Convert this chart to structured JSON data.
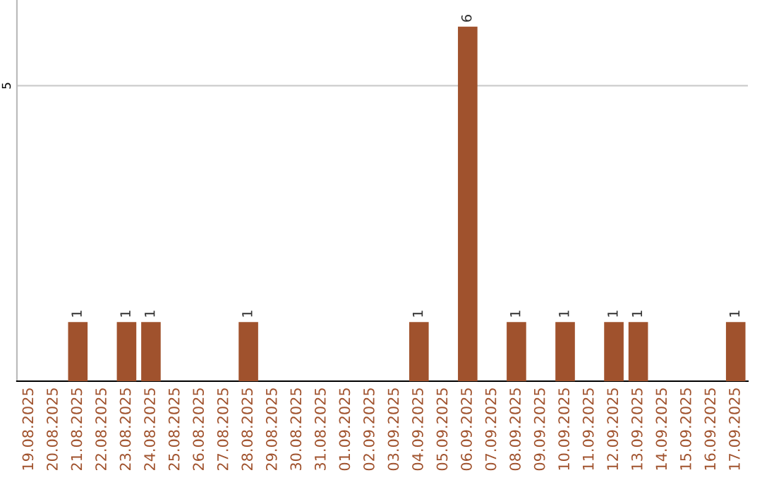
{
  "chart_data": {
    "type": "bar",
    "categories": [
      "19.08.2025",
      "20.08.2025",
      "21.08.2025",
      "22.08.2025",
      "23.08.2025",
      "24.08.2025",
      "25.08.2025",
      "26.08.2025",
      "27.08.2025",
      "28.08.2025",
      "29.08.2025",
      "30.08.2025",
      "31.08.2025",
      "01.09.2025",
      "02.09.2025",
      "03.09.2025",
      "04.09.2025",
      "05.09.2025",
      "06.09.2025",
      "07.09.2025",
      "08.09.2025",
      "09.09.2025",
      "10.09.2025",
      "11.09.2025",
      "12.09.2025",
      "13.09.2025",
      "14.09.2025",
      "15.09.2025",
      "16.09.2025",
      "17.09.2025"
    ],
    "values": [
      0,
      0,
      1,
      0,
      1,
      1,
      0,
      0,
      0,
      1,
      0,
      0,
      0,
      0,
      0,
      0,
      1,
      0,
      6,
      0,
      1,
      0,
      1,
      0,
      1,
      1,
      0,
      0,
      0,
      1
    ],
    "color": "#a0522d",
    "ylim": [
      0,
      6.45
    ],
    "yticks": [
      5
    ],
    "grid": "y",
    "value_labels": [
      null,
      null,
      "1",
      null,
      "1",
      "1",
      null,
      null,
      null,
      "1",
      null,
      null,
      null,
      null,
      null,
      null,
      "1",
      null,
      "6",
      null,
      "1",
      null,
      "1",
      null,
      "1",
      "1",
      null,
      null,
      null,
      "1"
    ]
  }
}
